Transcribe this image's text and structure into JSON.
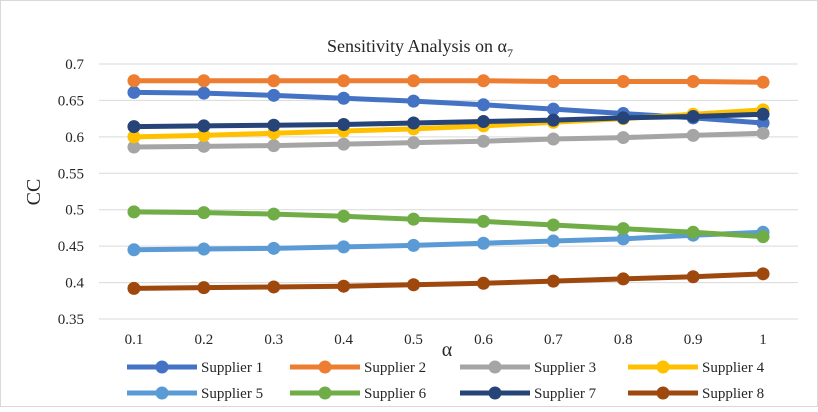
{
  "chart_data": {
    "type": "line",
    "title": "Sensitivity Analysis on α",
    "title_subscript": "7",
    "xlabel": "α",
    "ylabel": "CC",
    "ylim": [
      0.35,
      0.7
    ],
    "y_ticks": [
      "0.35",
      "0.4",
      "0.45",
      "0.5",
      "0.55",
      "0.6",
      "0.65",
      "0.7"
    ],
    "categories": [
      "0.1",
      "0.2",
      "0.3",
      "0.4",
      "0.5",
      "0.6",
      "0.7",
      "0.8",
      "0.9",
      "1"
    ],
    "grid": "horizontal",
    "legend_position": "bottom",
    "series": [
      {
        "name": "Supplier 1",
        "color": "#4472C4",
        "values": [
          0.661,
          0.66,
          0.657,
          0.653,
          0.649,
          0.644,
          0.638,
          0.632,
          0.626,
          0.619
        ]
      },
      {
        "name": "Supplier 2",
        "color": "#ED7D31",
        "values": [
          0.677,
          0.677,
          0.677,
          0.677,
          0.677,
          0.677,
          0.676,
          0.676,
          0.676,
          0.675
        ]
      },
      {
        "name": "Supplier 3",
        "color": "#A5A5A5",
        "values": [
          0.586,
          0.587,
          0.588,
          0.59,
          0.592,
          0.594,
          0.597,
          0.599,
          0.602,
          0.605
        ]
      },
      {
        "name": "Supplier 4",
        "color": "#FFC000",
        "values": [
          0.6,
          0.602,
          0.605,
          0.608,
          0.611,
          0.615,
          0.62,
          0.625,
          0.631,
          0.637
        ]
      },
      {
        "name": "Supplier 5",
        "color": "#5B9BD5",
        "values": [
          0.445,
          0.446,
          0.447,
          0.449,
          0.451,
          0.454,
          0.457,
          0.46,
          0.465,
          0.469
        ]
      },
      {
        "name": "Supplier 6",
        "color": "#70AD47",
        "values": [
          0.497,
          0.496,
          0.494,
          0.491,
          0.487,
          0.484,
          0.479,
          0.474,
          0.469,
          0.463
        ]
      },
      {
        "name": "Supplier 7",
        "color": "#264478",
        "values": [
          0.614,
          0.615,
          0.616,
          0.617,
          0.619,
          0.621,
          0.623,
          0.626,
          0.628,
          0.631
        ]
      },
      {
        "name": "Supplier 8",
        "color": "#9E480E",
        "values": [
          0.392,
          0.393,
          0.394,
          0.395,
          0.397,
          0.399,
          0.402,
          0.405,
          0.408,
          0.412
        ]
      }
    ]
  }
}
